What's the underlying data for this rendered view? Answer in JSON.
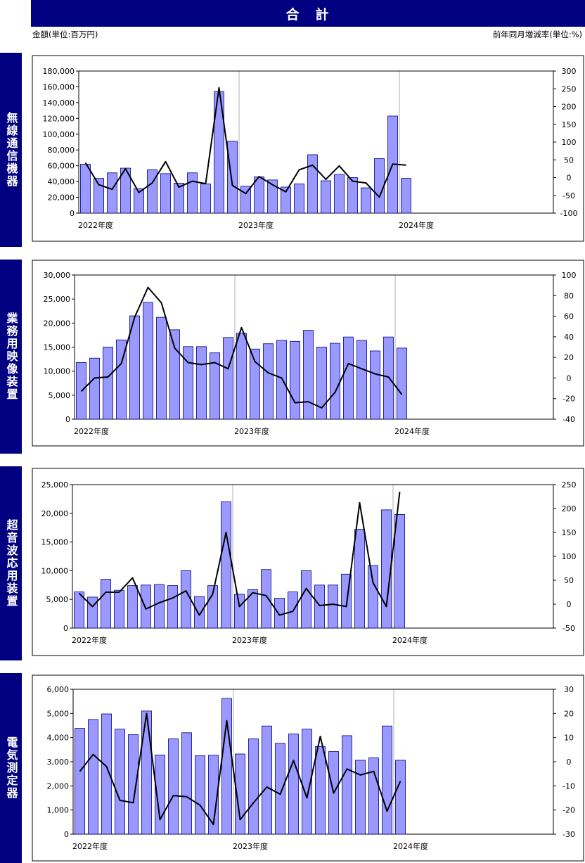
{
  "title": "合　計",
  "unit_left": "金額(単位:百万円)",
  "unit_right": "前年同月増減率(単位:%)",
  "colors": {
    "header_bg": "#000080",
    "bar_fill": "#9999ff",
    "bar_stroke": "#000080",
    "line": "#000000"
  },
  "chart_data": [
    {
      "type": "bar",
      "category_label": "無線通信機器",
      "x_labels": [
        "2022年度",
        "2023年度",
        "2024年度"
      ],
      "x_label_month_index": [
        0,
        12,
        24
      ],
      "left_axis": {
        "min": 0,
        "max": 180000,
        "step": 20000,
        "ticks": [
          "0",
          "20,000",
          "40,000",
          "60,000",
          "80,000",
          "100,000",
          "120,000",
          "140,000",
          "160,000",
          "180,000"
        ]
      },
      "right_axis": {
        "min": -100,
        "max": 300,
        "step": 50,
        "ticks": [
          "-100",
          "-50",
          "0",
          "50",
          "100",
          "150",
          "200",
          "250",
          "300"
        ]
      },
      "bars": [
        62000,
        44000,
        51000,
        57000,
        31000,
        55000,
        50000,
        38000,
        51000,
        37000,
        154000,
        91000,
        34000,
        46000,
        42000,
        33000,
        37000,
        74000,
        41000,
        49000,
        45000,
        32000,
        69000,
        123000,
        44000
      ],
      "line": [
        42,
        -20,
        -33,
        25,
        -42,
        -15,
        45,
        -27,
        -10,
        -17,
        253,
        -22,
        -45,
        3,
        -20,
        -40,
        22,
        35,
        -5,
        33,
        -10,
        -15,
        -55,
        38,
        35
      ]
    },
    {
      "type": "bar",
      "category_label": "業務用映像装置",
      "x_labels": [
        "2022年度",
        "2023年度",
        "2024年度"
      ],
      "x_label_month_index": [
        0,
        12,
        24
      ],
      "left_axis": {
        "min": 0,
        "max": 30000,
        "step": 5000,
        "ticks": [
          "0",
          "5,000",
          "10,000",
          "15,000",
          "20,000",
          "25,000",
          "30,000"
        ]
      },
      "right_axis": {
        "min": -40,
        "max": 100,
        "step": 20,
        "ticks": [
          "-40",
          "-20",
          "0",
          "20",
          "40",
          "60",
          "80",
          "100"
        ]
      },
      "bars": [
        11800,
        12700,
        15000,
        16500,
        21500,
        24300,
        21200,
        18600,
        15100,
        15100,
        13800,
        17000,
        17900,
        14600,
        15700,
        16400,
        16200,
        18500,
        15000,
        15800,
        17100,
        16400,
        14200,
        17100,
        14800
      ],
      "line": [
        -13,
        0,
        1,
        14,
        59,
        88,
        73,
        29,
        15,
        13,
        15,
        9,
        49,
        16,
        5,
        0,
        -24,
        -23,
        -29,
        -14,
        14,
        9,
        4,
        1,
        -16
      ]
    },
    {
      "type": "bar",
      "category_label": "超音波応用装置",
      "x_labels": [
        "2022年度",
        "2023年度",
        "2024年度"
      ],
      "x_label_month_index": [
        0,
        12,
        24
      ],
      "left_axis": {
        "min": 0,
        "max": 25000,
        "step": 5000,
        "ticks": [
          "0",
          "5,000",
          "10,000",
          "15,000",
          "20,000",
          "25,000"
        ]
      },
      "right_axis": {
        "min": -50,
        "max": 250,
        "step": 50,
        "ticks": [
          "-50",
          "0",
          "50",
          "100",
          "150",
          "200",
          "250"
        ]
      },
      "bars": [
        6300,
        5400,
        8500,
        6600,
        7400,
        7500,
        7600,
        7400,
        10000,
        5500,
        7400,
        22000,
        5900,
        6700,
        10200,
        5200,
        6300,
        10000,
        7500,
        7500,
        9400,
        17200,
        10900,
        20600,
        19800
      ],
      "line": [
        23,
        -5,
        25,
        25,
        55,
        -10,
        3,
        13,
        28,
        -23,
        21,
        150,
        -5,
        24,
        18,
        -23,
        -15,
        33,
        -3,
        0,
        -5,
        212,
        45,
        -5,
        235
      ]
    },
    {
      "type": "bar",
      "category_label": "電気測定器",
      "x_labels": [
        "2022年度",
        "2023年度",
        "2024年度"
      ],
      "x_label_month_index": [
        0,
        12,
        24
      ],
      "left_axis": {
        "min": 0,
        "max": 6000,
        "step": 1000,
        "ticks": [
          "0",
          "1,000",
          "2,000",
          "3,000",
          "4,000",
          "5,000",
          "6,000"
        ]
      },
      "right_axis": {
        "min": -30,
        "max": 30,
        "step": 10,
        "ticks": [
          "-30",
          "-20",
          "-10",
          "0",
          "10",
          "20",
          "30"
        ]
      },
      "bars": [
        4380,
        4750,
        4980,
        4350,
        4120,
        5100,
        3280,
        3950,
        4200,
        3250,
        3270,
        5620,
        3320,
        3950,
        4480,
        3760,
        4150,
        4350,
        3630,
        3420,
        4080,
        3060,
        3160,
        4480,
        3060
      ],
      "line": [
        -4,
        3,
        -2,
        -16,
        -17,
        20,
        -24,
        -14,
        -14.5,
        -18,
        -26,
        17,
        -24,
        -17,
        -10.5,
        -13.5,
        0.5,
        -15,
        10.5,
        -13,
        -3,
        -5.5,
        -4,
        -20.5,
        -8
      ]
    }
  ]
}
